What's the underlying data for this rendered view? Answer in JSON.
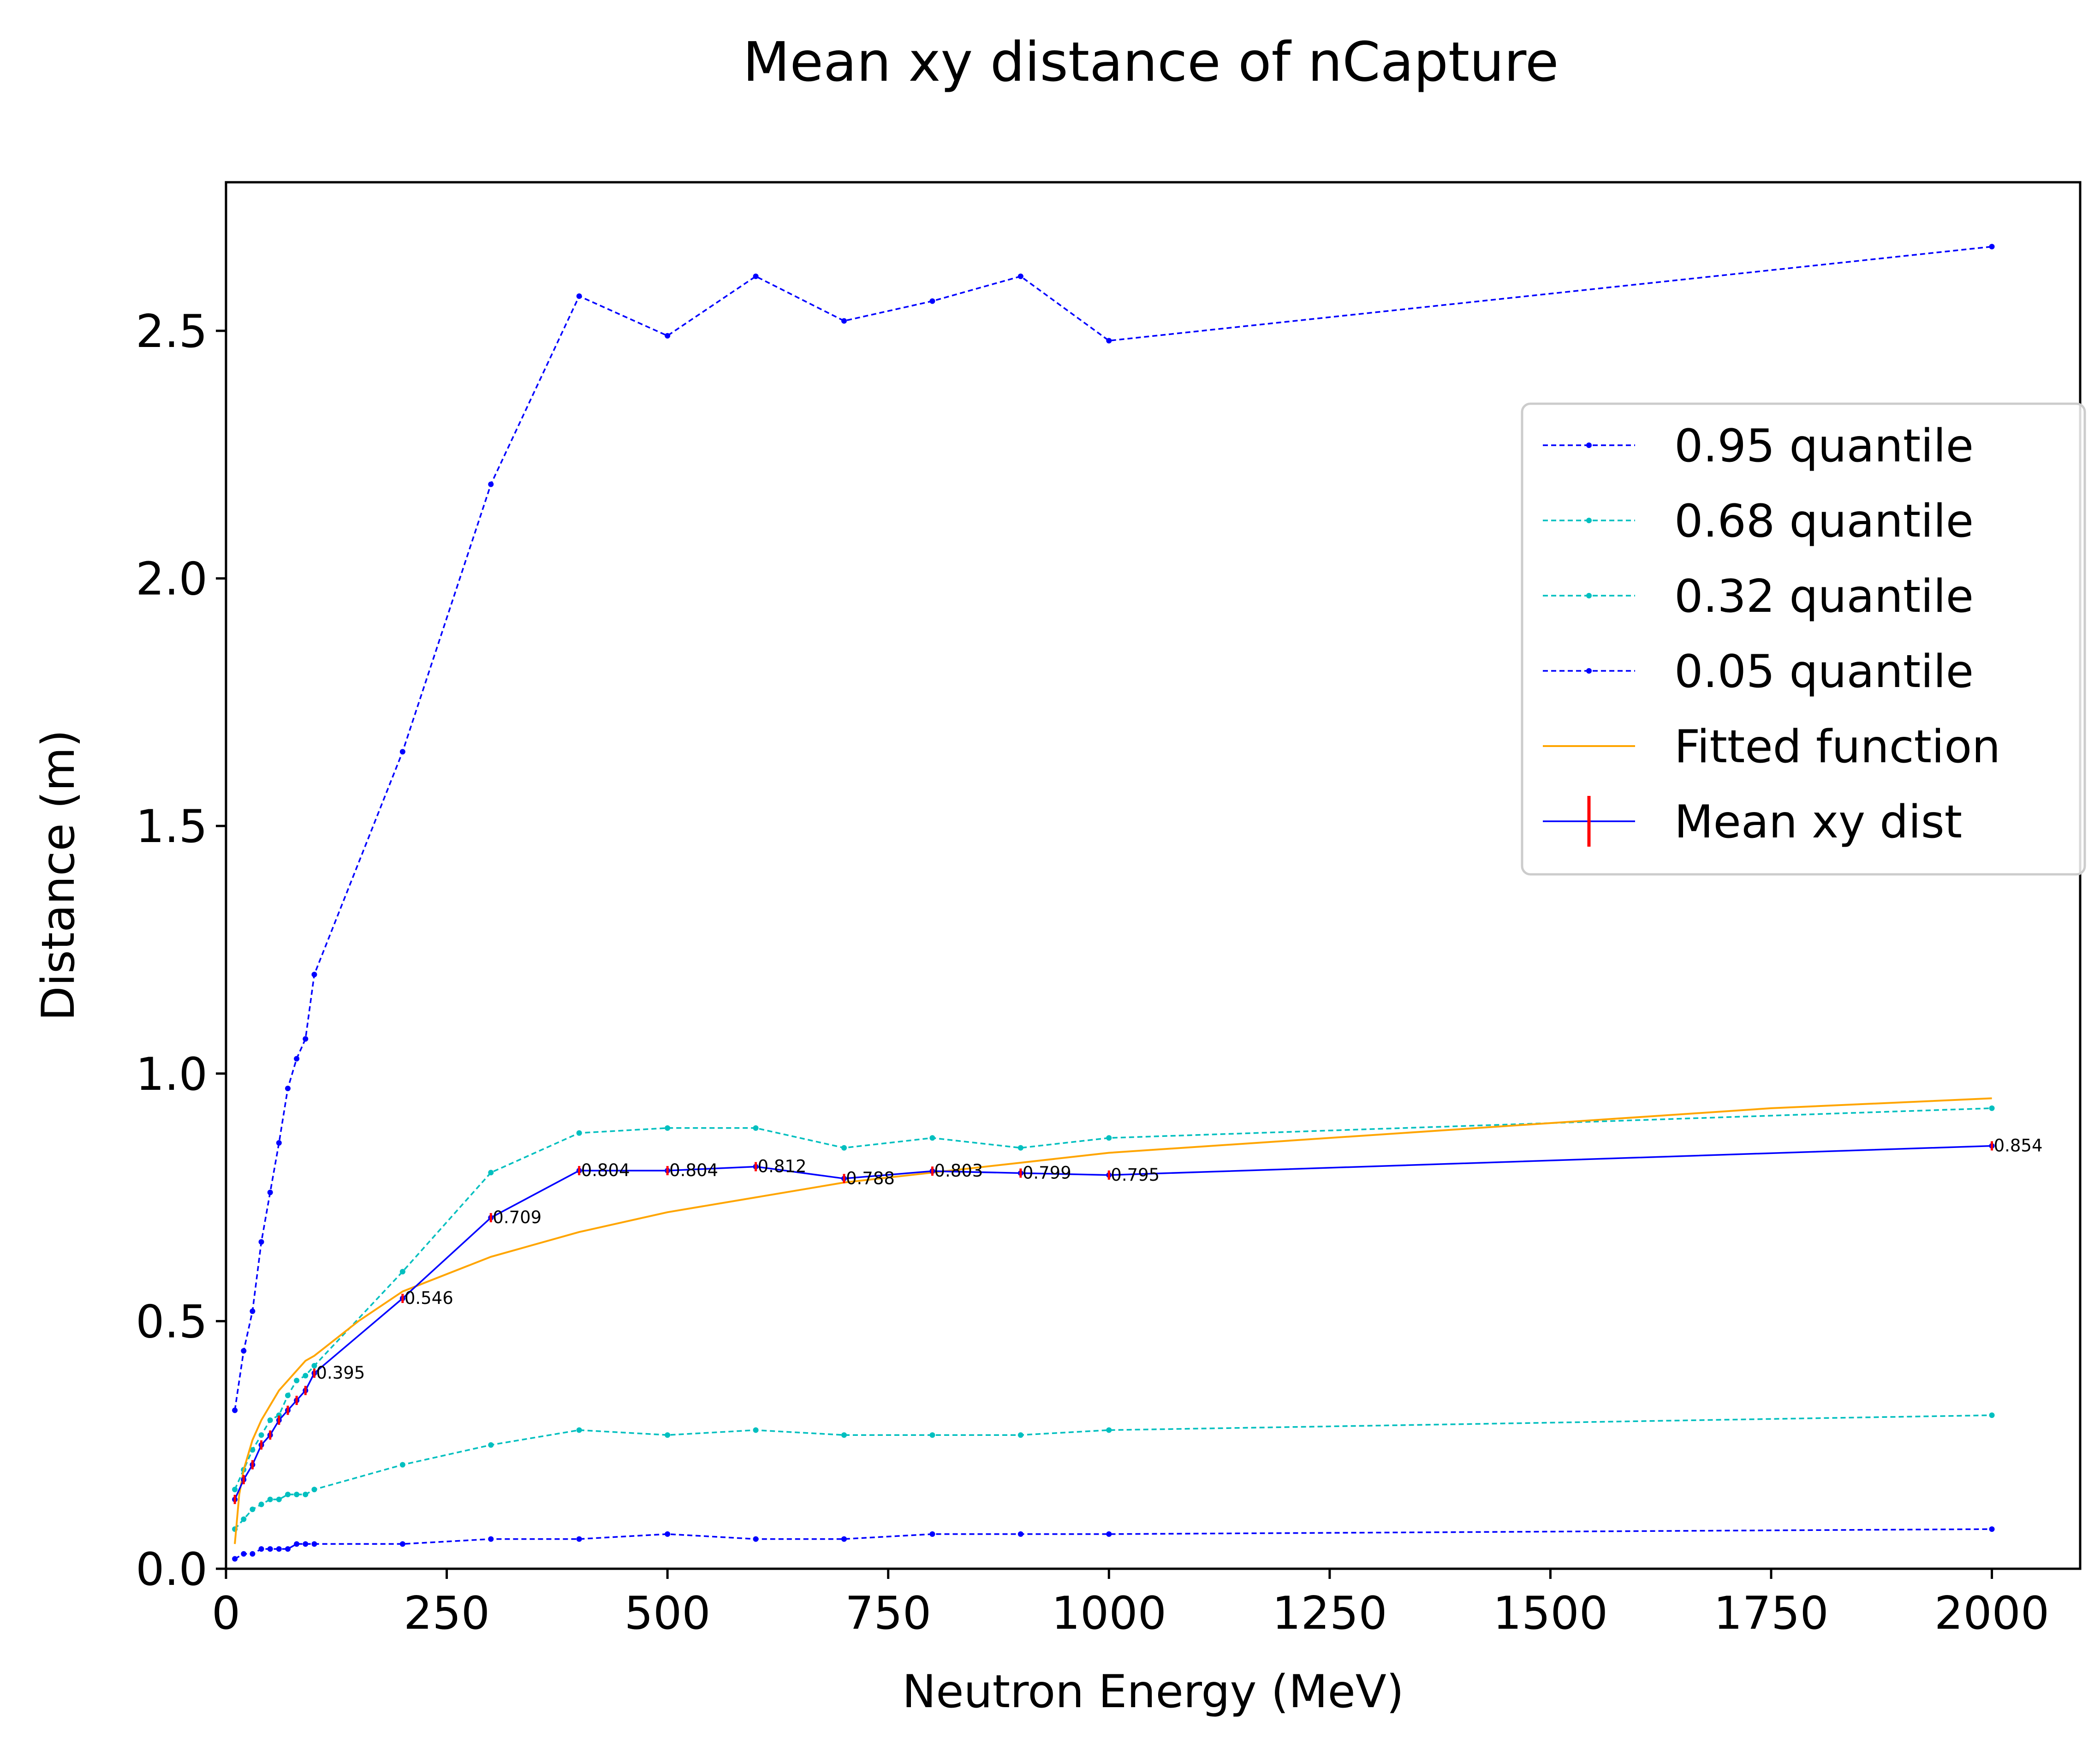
{
  "chart_data": {
    "type": "line",
    "title": "Mean xy distance of nCapture",
    "xlabel": "Neutron Energy (MeV)",
    "ylabel": "Distance (m)",
    "xlim": [
      0,
      2100
    ],
    "ylim": [
      0,
      2.8
    ],
    "xticks": [
      0,
      250,
      500,
      750,
      1000,
      1250,
      1500,
      1750,
      2000
    ],
    "yticks": [
      0.0,
      0.5,
      1.0,
      1.5,
      2.0,
      2.5
    ],
    "xtick_labels": [
      "0",
      "250",
      "500",
      "750",
      "1000",
      "1250",
      "1500",
      "1750",
      "2000"
    ],
    "ytick_labels": [
      "0.0",
      "0.5",
      "1.0",
      "1.5",
      "2.0",
      "2.5"
    ],
    "grid": false,
    "legend_position": "right",
    "x": [
      10,
      20,
      30,
      40,
      50,
      60,
      70,
      80,
      90,
      100,
      200,
      300,
      400,
      500,
      600,
      700,
      800,
      900,
      1000,
      2000
    ],
    "series": [
      {
        "name": "0.95 quantile",
        "style": "dashed-marker",
        "color": "#0000ff",
        "values": [
          0.32,
          0.44,
          0.52,
          0.66,
          0.76,
          0.86,
          0.97,
          1.03,
          1.07,
          1.2,
          1.65,
          2.19,
          2.57,
          2.49,
          2.61,
          2.52,
          2.56,
          2.61,
          2.48,
          2.67
        ]
      },
      {
        "name": "0.68 quantile",
        "style": "dashed-marker",
        "color": "#00bfbf",
        "values": [
          0.16,
          0.2,
          0.24,
          0.27,
          0.3,
          0.31,
          0.35,
          0.38,
          0.39,
          0.41,
          0.6,
          0.8,
          0.88,
          0.89,
          0.89,
          0.85,
          0.87,
          0.85,
          0.87,
          0.93
        ]
      },
      {
        "name": "0.32 quantile",
        "style": "dashed-marker",
        "color": "#00bfbf",
        "values": [
          0.08,
          0.1,
          0.12,
          0.13,
          0.14,
          0.14,
          0.15,
          0.15,
          0.15,
          0.16,
          0.21,
          0.25,
          0.28,
          0.27,
          0.28,
          0.27,
          0.27,
          0.27,
          0.28,
          0.31
        ]
      },
      {
        "name": "0.05 quantile",
        "style": "dashed-marker",
        "color": "#0000ff",
        "values": [
          0.02,
          0.03,
          0.03,
          0.04,
          0.04,
          0.04,
          0.04,
          0.05,
          0.05,
          0.05,
          0.05,
          0.06,
          0.06,
          0.07,
          0.06,
          0.06,
          0.07,
          0.07,
          0.07,
          0.08
        ]
      },
      {
        "name": "Fitted function",
        "style": "solid",
        "color": "#ffa500",
        "x": [
          10,
          15,
          20,
          30,
          40,
          50,
          60,
          70,
          80,
          90,
          100,
          150,
          200,
          300,
          400,
          500,
          600,
          700,
          800,
          900,
          1000,
          1250,
          1500,
          1750,
          2000
        ],
        "values": [
          0.05,
          0.15,
          0.2,
          0.26,
          0.3,
          0.33,
          0.36,
          0.38,
          0.4,
          0.42,
          0.43,
          0.5,
          0.56,
          0.63,
          0.68,
          0.72,
          0.75,
          0.78,
          0.8,
          0.82,
          0.84,
          0.87,
          0.9,
          0.93,
          0.95
        ]
      },
      {
        "name": "Mean xy dist",
        "style": "solid-errorbar",
        "color": "#0000ff",
        "errorbar_color": "#ff0000",
        "values": [
          0.14,
          0.18,
          0.21,
          0.25,
          0.27,
          0.3,
          0.32,
          0.34,
          0.36,
          0.395,
          0.546,
          0.709,
          0.804,
          0.804,
          0.812,
          0.788,
          0.803,
          0.799,
          0.795,
          0.854
        ]
      }
    ],
    "annotations": [
      {
        "x": 100,
        "y": 0.395,
        "text": "0.395"
      },
      {
        "x": 200,
        "y": 0.546,
        "text": "0.546"
      },
      {
        "x": 300,
        "y": 0.709,
        "text": "0.709"
      },
      {
        "x": 400,
        "y": 0.804,
        "text": "0.804"
      },
      {
        "x": 500,
        "y": 0.804,
        "text": "0.804"
      },
      {
        "x": 600,
        "y": 0.812,
        "text": "0.812"
      },
      {
        "x": 700,
        "y": 0.788,
        "text": "0.788"
      },
      {
        "x": 800,
        "y": 0.803,
        "text": "0.803"
      },
      {
        "x": 900,
        "y": 0.799,
        "text": "0.799"
      },
      {
        "x": 1000,
        "y": 0.795,
        "text": "0.795"
      },
      {
        "x": 2000,
        "y": 0.854,
        "text": "0.854"
      }
    ]
  }
}
